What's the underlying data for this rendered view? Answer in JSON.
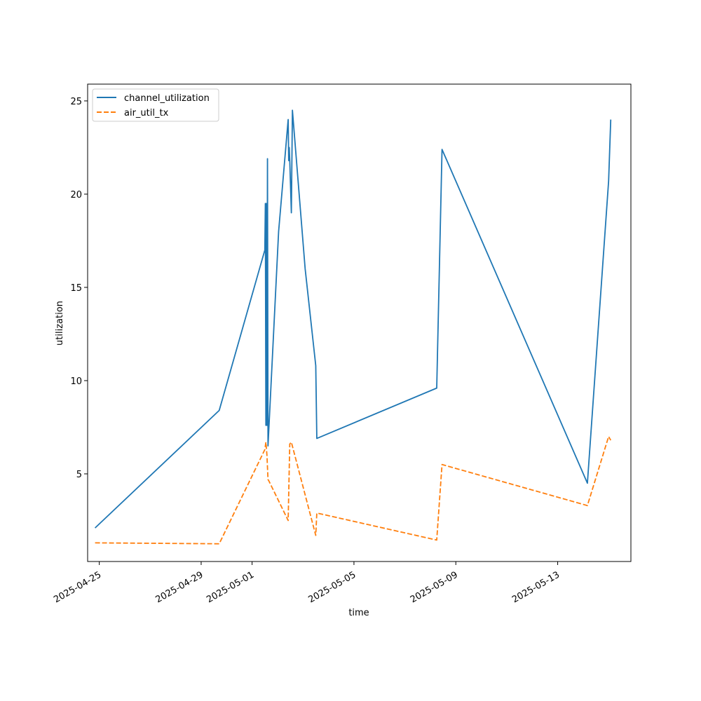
{
  "chart_data": {
    "type": "line",
    "xlabel": "time",
    "ylabel": "utilization",
    "x_axis_type": "date",
    "xlim": [
      "2025-04-24T13:00",
      "2025-05-15T21:00"
    ],
    "ylim": [
      0.3,
      25.9
    ],
    "x_ticks": [
      "2025-04-25",
      "2025-04-29",
      "2025-05-01",
      "2025-05-05",
      "2025-05-09",
      "2025-05-13"
    ],
    "y_ticks": [
      5,
      10,
      15,
      20,
      25
    ],
    "grid": false,
    "legend": "upper-left",
    "series": [
      {
        "name": "channel_utilization",
        "color": "#1f77b4",
        "style": "solid",
        "points": [
          [
            "2025-04-24T20:00",
            2.1
          ],
          [
            "2025-04-29T17:00",
            8.4
          ],
          [
            "2025-05-01T12:00",
            17.0
          ],
          [
            "2025-05-01T12:30",
            19.5
          ],
          [
            "2025-05-01T13:00",
            7.6
          ],
          [
            "2025-05-01T13:30",
            19.5
          ],
          [
            "2025-05-01T14:00",
            7.6
          ],
          [
            "2025-05-01T14:30",
            21.9
          ],
          [
            "2025-05-01T15:00",
            6.5
          ],
          [
            "2025-05-02T01:00",
            18.0
          ],
          [
            "2025-05-02T10:00",
            24.0
          ],
          [
            "2025-05-02T10:30",
            21.8
          ],
          [
            "2025-05-02T11:00",
            22.5
          ],
          [
            "2025-05-02T11:30",
            21.8
          ],
          [
            "2025-05-02T13:00",
            19.0
          ],
          [
            "2025-05-02T14:00",
            24.5
          ],
          [
            "2025-05-03T02:00",
            16.0
          ],
          [
            "2025-05-03T12:00",
            10.8
          ],
          [
            "2025-05-03T13:00",
            6.9
          ],
          [
            "2025-05-08T06:00",
            9.6
          ],
          [
            "2025-05-08T11:00",
            22.4
          ],
          [
            "2025-05-14T04:00",
            4.5
          ],
          [
            "2025-05-15T00:00",
            20.7
          ],
          [
            "2025-05-15T02:00",
            24.0
          ]
        ]
      },
      {
        "name": "air_util_tx",
        "color": "#ff7f0e",
        "style": "dashed",
        "points": [
          [
            "2025-04-24T20:00",
            1.3
          ],
          [
            "2025-04-29T17:00",
            1.25
          ],
          [
            "2025-05-01T12:00",
            6.3
          ],
          [
            "2025-05-01T13:00",
            6.7
          ],
          [
            "2025-05-01T14:00",
            6.0
          ],
          [
            "2025-05-01T15:00",
            4.7
          ],
          [
            "2025-05-01T16:00",
            4.6
          ],
          [
            "2025-05-02T10:00",
            2.5
          ],
          [
            "2025-05-02T11:30",
            6.6
          ],
          [
            "2025-05-02T13:00",
            6.7
          ],
          [
            "2025-05-03T12:00",
            1.7
          ],
          [
            "2025-05-03T13:00",
            2.9
          ],
          [
            "2025-05-08T06:00",
            1.45
          ],
          [
            "2025-05-08T11:00",
            5.5
          ],
          [
            "2025-05-14T04:00",
            3.3
          ],
          [
            "2025-05-15T00:00",
            7.0
          ],
          [
            "2025-05-15T02:00",
            6.8
          ]
        ]
      }
    ]
  }
}
